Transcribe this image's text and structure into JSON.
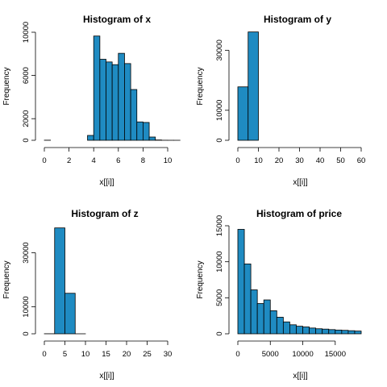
{
  "colors": {
    "bar_fill": "#1f8bc2",
    "bar_stroke": "#000000",
    "axis": "#000000"
  },
  "chart_data": [
    {
      "type": "bar",
      "title": "Histogram of x",
      "xlabel": "x[[i]]",
      "ylabel": "Frequency",
      "xlim": [
        0,
        10
      ],
      "ylim": [
        0,
        10000
      ],
      "xticks": [
        0,
        2,
        4,
        6,
        8,
        10
      ],
      "yticks": [
        0,
        2000,
        6000,
        10000
      ],
      "bins": [
        {
          "x0": 0.0,
          "x1": 0.5,
          "count": 8
        },
        {
          "x0": 0.5,
          "x1": 1.0,
          "count": 0
        },
        {
          "x0": 1.0,
          "x1": 1.5,
          "count": 0
        },
        {
          "x0": 1.5,
          "x1": 2.0,
          "count": 0
        },
        {
          "x0": 2.0,
          "x1": 2.5,
          "count": 0
        },
        {
          "x0": 2.5,
          "x1": 3.0,
          "count": 0
        },
        {
          "x0": 3.0,
          "x1": 3.5,
          "count": 0
        },
        {
          "x0": 3.5,
          "x1": 4.0,
          "count": 450
        },
        {
          "x0": 4.0,
          "x1": 4.5,
          "count": 9650
        },
        {
          "x0": 4.5,
          "x1": 5.0,
          "count": 7500
        },
        {
          "x0": 5.0,
          "x1": 5.5,
          "count": 7250
        },
        {
          "x0": 5.5,
          "x1": 6.0,
          "count": 7000
        },
        {
          "x0": 6.0,
          "x1": 6.5,
          "count": 8050
        },
        {
          "x0": 6.5,
          "x1": 7.0,
          "count": 7100
        },
        {
          "x0": 7.0,
          "x1": 7.5,
          "count": 4700
        },
        {
          "x0": 7.5,
          "x1": 8.0,
          "count": 1700
        },
        {
          "x0": 8.0,
          "x1": 8.5,
          "count": 1650
        },
        {
          "x0": 8.5,
          "x1": 9.0,
          "count": 300
        },
        {
          "x0": 9.0,
          "x1": 9.5,
          "count": 30
        },
        {
          "x0": 9.5,
          "x1": 10.0,
          "count": 5
        },
        {
          "x0": 10.0,
          "x1": 10.5,
          "count": 2
        },
        {
          "x0": 10.5,
          "x1": 11.0,
          "count": 1
        }
      ]
    },
    {
      "type": "bar",
      "title": "Histogram of y",
      "xlabel": "x[[i]]",
      "ylabel": "Frequency",
      "xlim": [
        0,
        60
      ],
      "ylim": [
        0,
        36000
      ],
      "xticks": [
        0,
        10,
        20,
        30,
        40,
        50,
        60
      ],
      "yticks": [
        0,
        10000,
        30000
      ],
      "bins": [
        {
          "x0": 0,
          "x1": 5,
          "count": 17800
        },
        {
          "x0": 5,
          "x1": 10,
          "count": 36100
        },
        {
          "x0": 10,
          "x1": 15,
          "count": 0
        },
        {
          "x0": 15,
          "x1": 20,
          "count": 0
        },
        {
          "x0": 20,
          "x1": 25,
          "count": 0
        },
        {
          "x0": 25,
          "x1": 30,
          "count": 1
        },
        {
          "x0": 30,
          "x1": 35,
          "count": 1
        },
        {
          "x0": 35,
          "x1": 40,
          "count": 0
        },
        {
          "x0": 40,
          "x1": 45,
          "count": 0
        },
        {
          "x0": 45,
          "x1": 50,
          "count": 0
        },
        {
          "x0": 50,
          "x1": 55,
          "count": 0
        },
        {
          "x0": 55,
          "x1": 60,
          "count": 1
        }
      ]
    },
    {
      "type": "bar",
      "title": "Histogram of z",
      "xlabel": "x[[i]]",
      "ylabel": "Frequency",
      "xlim": [
        0,
        30
      ],
      "ylim": [
        0,
        40000
      ],
      "xticks": [
        0,
        5,
        10,
        15,
        20,
        25,
        30
      ],
      "yticks": [
        0,
        10000,
        30000
      ],
      "bins": [
        {
          "x0": 0,
          "x1": 2.5,
          "count": 20
        },
        {
          "x0": 2.5,
          "x1": 5,
          "count": 39200
        },
        {
          "x0": 5,
          "x1": 7.5,
          "count": 15000
        },
        {
          "x0": 7.5,
          "x1": 10,
          "count": 2
        },
        {
          "x0": 10,
          "x1": 12.5,
          "count": 0
        },
        {
          "x0": 12.5,
          "x1": 15,
          "count": 0
        },
        {
          "x0": 15,
          "x1": 17.5,
          "count": 0
        },
        {
          "x0": 17.5,
          "x1": 20,
          "count": 0
        },
        {
          "x0": 20,
          "x1": 22.5,
          "count": 0
        },
        {
          "x0": 22.5,
          "x1": 25,
          "count": 0
        },
        {
          "x0": 25,
          "x1": 27.5,
          "count": 0
        },
        {
          "x0": 27.5,
          "x1": 30,
          "count": 0
        },
        {
          "x0": 30,
          "x1": 32.5,
          "count": 1
        }
      ]
    },
    {
      "type": "bar",
      "title": "Histogram of price",
      "xlabel": "x[[i]]",
      "ylabel": "Frequency",
      "xlim": [
        0,
        19000
      ],
      "ylim": [
        0,
        15000
      ],
      "xticks": [
        0,
        5000,
        10000,
        15000
      ],
      "yticks": [
        0,
        5000,
        10000,
        15000
      ],
      "bins": [
        {
          "x0": 0,
          "x1": 1000,
          "count": 14500
        },
        {
          "x0": 1000,
          "x1": 2000,
          "count": 9700
        },
        {
          "x0": 2000,
          "x1": 3000,
          "count": 6100
        },
        {
          "x0": 3000,
          "x1": 4000,
          "count": 4200
        },
        {
          "x0": 4000,
          "x1": 5000,
          "count": 4700
        },
        {
          "x0": 5000,
          "x1": 6000,
          "count": 3200
        },
        {
          "x0": 6000,
          "x1": 7000,
          "count": 2300
        },
        {
          "x0": 7000,
          "x1": 8000,
          "count": 1650
        },
        {
          "x0": 8000,
          "x1": 9000,
          "count": 1250
        },
        {
          "x0": 9000,
          "x1": 10000,
          "count": 1050
        },
        {
          "x0": 10000,
          "x1": 11000,
          "count": 950
        },
        {
          "x0": 11000,
          "x1": 12000,
          "count": 800
        },
        {
          "x0": 12000,
          "x1": 13000,
          "count": 700
        },
        {
          "x0": 13000,
          "x1": 14000,
          "count": 650
        },
        {
          "x0": 14000,
          "x1": 15000,
          "count": 580
        },
        {
          "x0": 15000,
          "x1": 16000,
          "count": 520
        },
        {
          "x0": 16000,
          "x1": 17000,
          "count": 480
        },
        {
          "x0": 17000,
          "x1": 18000,
          "count": 430
        },
        {
          "x0": 18000,
          "x1": 19000,
          "count": 380
        }
      ]
    }
  ]
}
